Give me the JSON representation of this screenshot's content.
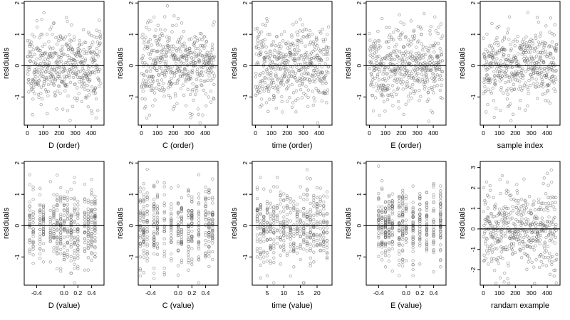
{
  "chart_data": [
    {
      "type": "scatter",
      "xlabel": "D (order)",
      "ylabel": "residuals",
      "xlim": [
        -20,
        480
      ],
      "ylim": [
        -1.9,
        2.05
      ],
      "xticks": [
        {
          "v": 0,
          "t": "0"
        },
        {
          "v": 100,
          "t": "100"
        },
        {
          "v": 200,
          "t": "200"
        },
        {
          "v": 300,
          "t": "300"
        },
        {
          "v": 400,
          "t": "400"
        }
      ],
      "yticks": [
        {
          "v": -1,
          "t": "-1"
        },
        {
          "v": 0,
          "t": "0"
        },
        {
          "v": 1,
          "t": "1"
        },
        {
          "v": 2,
          "t": "2"
        }
      ],
      "hline": 0,
      "n": 460,
      "x_mode": "index",
      "seed": 11
    },
    {
      "type": "scatter",
      "xlabel": "C (order)",
      "ylabel": "residuals",
      "xlim": [
        -20,
        480
      ],
      "ylim": [
        -1.9,
        2.05
      ],
      "xticks": [
        {
          "v": 0,
          "t": "0"
        },
        {
          "v": 100,
          "t": "100"
        },
        {
          "v": 200,
          "t": "200"
        },
        {
          "v": 300,
          "t": "300"
        },
        {
          "v": 400,
          "t": "400"
        }
      ],
      "yticks": [
        {
          "v": -1,
          "t": "-1"
        },
        {
          "v": 0,
          "t": "0"
        },
        {
          "v": 1,
          "t": "1"
        },
        {
          "v": 2,
          "t": "2"
        }
      ],
      "hline": 0,
      "n": 460,
      "x_mode": "index",
      "seed": 23
    },
    {
      "type": "scatter",
      "xlabel": "time (order)",
      "ylabel": "residuals",
      "xlim": [
        -20,
        480
      ],
      "ylim": [
        -1.9,
        2.05
      ],
      "xticks": [
        {
          "v": 0,
          "t": "0"
        },
        {
          "v": 100,
          "t": "100"
        },
        {
          "v": 200,
          "t": "200"
        },
        {
          "v": 300,
          "t": "300"
        },
        {
          "v": 400,
          "t": "400"
        }
      ],
      "yticks": [
        {
          "v": -1,
          "t": "-1"
        },
        {
          "v": 0,
          "t": "0"
        },
        {
          "v": 1,
          "t": "1"
        },
        {
          "v": 2,
          "t": "2"
        }
      ],
      "hline": 0,
      "n": 460,
      "x_mode": "index",
      "seed": 37
    },
    {
      "type": "scatter",
      "xlabel": "E (order)",
      "ylabel": "residuals",
      "xlim": [
        -20,
        480
      ],
      "ylim": [
        -1.9,
        2.05
      ],
      "xticks": [
        {
          "v": 0,
          "t": "0"
        },
        {
          "v": 100,
          "t": "100"
        },
        {
          "v": 200,
          "t": "200"
        },
        {
          "v": 300,
          "t": "300"
        },
        {
          "v": 400,
          "t": "400"
        }
      ],
      "yticks": [
        {
          "v": -1,
          "t": "-1"
        },
        {
          "v": 0,
          "t": "0"
        },
        {
          "v": 1,
          "t": "1"
        },
        {
          "v": 2,
          "t": "2"
        }
      ],
      "hline": 0,
      "n": 460,
      "x_mode": "index",
      "seed": 41
    },
    {
      "type": "scatter",
      "xlabel": "sample index",
      "ylabel": "residuals",
      "xlim": [
        -20,
        480
      ],
      "ylim": [
        -1.9,
        2.05
      ],
      "xticks": [
        {
          "v": 0,
          "t": "0"
        },
        {
          "v": 100,
          "t": "100"
        },
        {
          "v": 200,
          "t": "200"
        },
        {
          "v": 300,
          "t": "300"
        },
        {
          "v": 400,
          "t": "400"
        }
      ],
      "yticks": [
        {
          "v": -1,
          "t": "-1"
        },
        {
          "v": 0,
          "t": "0"
        },
        {
          "v": 1,
          "t": "1"
        },
        {
          "v": 2,
          "t": "2"
        }
      ],
      "hline": 0,
      "n": 460,
      "x_mode": "index",
      "seed": 53
    },
    {
      "type": "scatter",
      "xlabel": "D (value)",
      "ylabel": "residuals",
      "xlim": [
        -0.58,
        0.58
      ],
      "ylim": [
        -1.9,
        2.05
      ],
      "xticks": [
        {
          "v": -0.4,
          "t": "-0.4"
        },
        {
          "v": 0,
          "t": "0.0"
        },
        {
          "v": 0.2,
          "t": "0.2"
        },
        {
          "v": 0.4,
          "t": "0.4"
        }
      ],
      "yticks": [
        {
          "v": -1,
          "t": "-1"
        },
        {
          "v": 0,
          "t": "0"
        },
        {
          "v": 1,
          "t": "1"
        },
        {
          "v": 2,
          "t": "2"
        }
      ],
      "hline": 0,
      "n": 460,
      "x_mode": "columns",
      "x_values": [
        -0.5,
        -0.45,
        -0.35,
        -0.3,
        -0.2,
        -0.15,
        -0.1,
        -0.05,
        0,
        0.05,
        0.1,
        0.15,
        0.2,
        0.3,
        0.35,
        0.4,
        0.45
      ],
      "seed": 61
    },
    {
      "type": "scatter",
      "xlabel": "C (value)",
      "ylabel": "residuals",
      "xlim": [
        -0.58,
        0.58
      ],
      "ylim": [
        -1.9,
        2.05
      ],
      "xticks": [
        {
          "v": -0.4,
          "t": "-0.4"
        },
        {
          "v": 0,
          "t": "0.0"
        },
        {
          "v": 0.2,
          "t": "0.2"
        },
        {
          "v": 0.4,
          "t": "0.4"
        }
      ],
      "yticks": [
        {
          "v": -1,
          "t": "-1"
        },
        {
          "v": 0,
          "t": "0"
        },
        {
          "v": 1,
          "t": "1"
        },
        {
          "v": 2,
          "t": "2"
        }
      ],
      "hline": 0,
      "n": 460,
      "x_mode": "columns",
      "x_values": [
        -0.55,
        -0.5,
        -0.45,
        -0.35,
        -0.3,
        -0.2,
        -0.1,
        0,
        0.05,
        0.15,
        0.2,
        0.3,
        0.4,
        0.45,
        0.5
      ],
      "seed": 71
    },
    {
      "type": "scatter",
      "xlabel": "time (value)",
      "ylabel": "residuals",
      "xlim": [
        0.5,
        24.5
      ],
      "ylim": [
        -1.9,
        2.05
      ],
      "xticks": [
        {
          "v": 5,
          "t": "5"
        },
        {
          "v": 10,
          "t": "10"
        },
        {
          "v": 15,
          "t": "15"
        },
        {
          "v": 20,
          "t": "20"
        }
      ],
      "yticks": [
        {
          "v": -1,
          "t": "-1"
        },
        {
          "v": 0,
          "t": "0"
        },
        {
          "v": 1,
          "t": "1"
        },
        {
          "v": 2,
          "t": "2"
        }
      ],
      "hline": 0,
      "n": 460,
      "x_mode": "columns",
      "x_values": [
        2,
        3,
        4,
        5,
        6,
        7,
        8,
        9,
        10,
        11,
        12,
        13,
        14,
        15,
        16,
        17,
        18,
        19,
        20,
        21,
        22,
        23
      ],
      "seed": 83
    },
    {
      "type": "scatter",
      "xlabel": "E (value)",
      "ylabel": "residuals",
      "xlim": [
        -0.58,
        0.58
      ],
      "ylim": [
        -1.9,
        2.05
      ],
      "xticks": [
        {
          "v": -0.4,
          "t": "-0.4"
        },
        {
          "v": 0,
          "t": "0.0"
        },
        {
          "v": 0.2,
          "t": "0.2"
        },
        {
          "v": 0.4,
          "t": "0.4"
        }
      ],
      "yticks": [
        {
          "v": -1,
          "t": "-1"
        },
        {
          "v": 0,
          "t": "0"
        },
        {
          "v": 1,
          "t": "1"
        },
        {
          "v": 2,
          "t": "2"
        }
      ],
      "hline": 0,
      "n": 460,
      "x_mode": "columns",
      "x_values": [
        -0.4,
        -0.35,
        -0.3,
        -0.25,
        -0.2,
        -0.1,
        -0.05,
        0,
        0.1,
        0.2,
        0.3,
        0.4,
        0.5
      ],
      "seed": 97
    },
    {
      "type": "scatter",
      "xlabel": "randam example",
      "ylabel": "residuals",
      "xlim": [
        -20,
        480
      ],
      "ylim": [
        -2.75,
        3.3
      ],
      "xticks": [
        {
          "v": 0,
          "t": "0"
        },
        {
          "v": 100,
          "t": "100"
        },
        {
          "v": 200,
          "t": "200"
        },
        {
          "v": 300,
          "t": "300"
        },
        {
          "v": 400,
          "t": "400"
        }
      ],
      "yticks": [
        {
          "v": -2,
          "t": "-2"
        },
        {
          "v": -1,
          "t": "-1"
        },
        {
          "v": 0,
          "t": "0"
        },
        {
          "v": 1,
          "t": "1"
        },
        {
          "v": 2,
          "t": "2"
        },
        {
          "v": 3,
          "t": "3"
        }
      ],
      "hline": 0,
      "n": 460,
      "x_mode": "index",
      "seed": 109
    }
  ]
}
